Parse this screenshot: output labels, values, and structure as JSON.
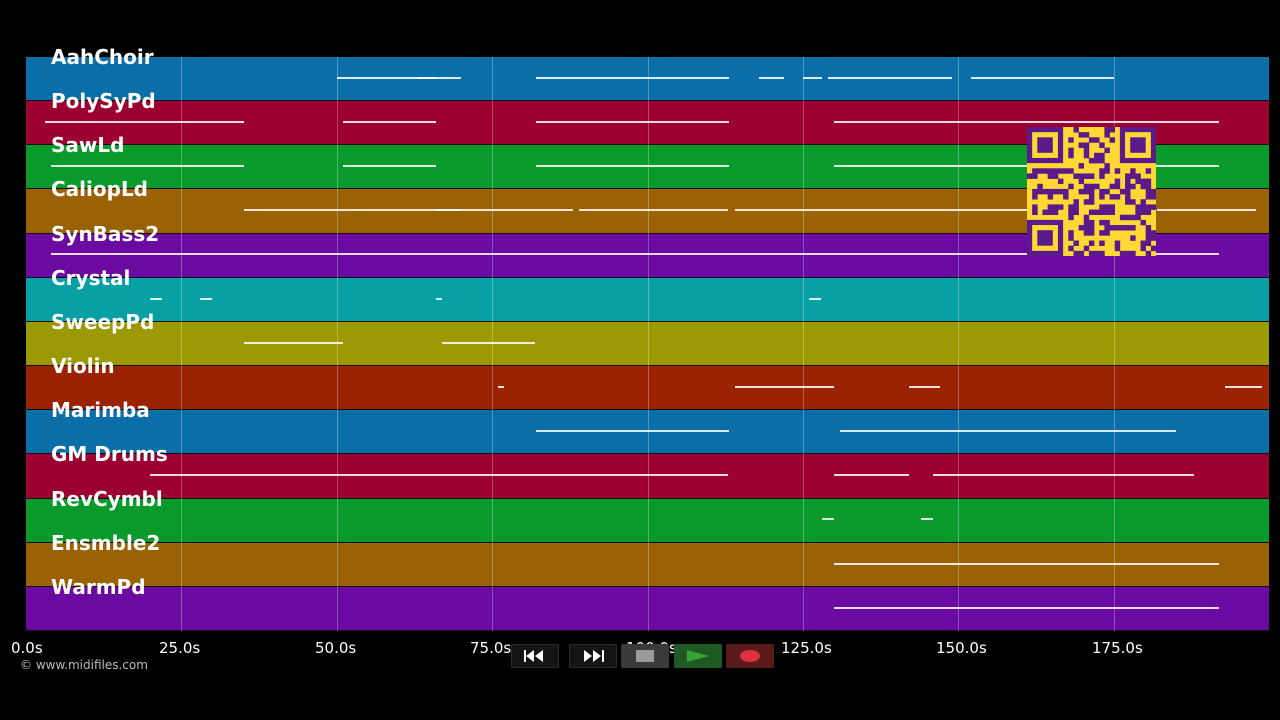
{
  "tracks": [
    {
      "label": "AahChoir",
      "color": "#0a6ea8"
    },
    {
      "label": "PolySyPd",
      "color": "#9c0030"
    },
    {
      "label": "SawLd",
      "color": "#0a9a2c"
    },
    {
      "label": "CaliopLd",
      "color": "#9a6204"
    },
    {
      "label": "SynBass2",
      "color": "#6a0aa0"
    },
    {
      "label": "Crystal",
      "color": "#08a0a4"
    },
    {
      "label": "SweepPd",
      "color": "#9c9a04"
    },
    {
      "label": "Violin",
      "color": "#9c2204"
    },
    {
      "label": "Marimba",
      "color": "#0a6ea8"
    },
    {
      "label": "GM Drums",
      "color": "#9c0030"
    },
    {
      "label": "RevCymbl",
      "color": "#0a9a2c"
    },
    {
      "label": "Ensmble2",
      "color": "#9a6204"
    },
    {
      "label": "WarmPd",
      "color": "#6a0aa0"
    }
  ],
  "time_axis": {
    "ticks": [
      "0.0s",
      "25.0s",
      "50.0s",
      "75.0s",
      "100.0s",
      "125.0s",
      "150.0s",
      "175.0s"
    ],
    "max_seconds": 200
  },
  "copyright": "© www.midifiles.com",
  "transport": {
    "rewind_icon": "rewind-icon",
    "fast_forward_icon": "fast-forward-icon",
    "stop_icon": "stop-icon",
    "play_icon": "play-icon",
    "record_icon": "record-icon",
    "accent_play": "#3aa03a",
    "accent_record": "#e03040"
  },
  "qr_code": {
    "color_fg": "#5a1a8a",
    "color_bg": "#ffd835"
  }
}
